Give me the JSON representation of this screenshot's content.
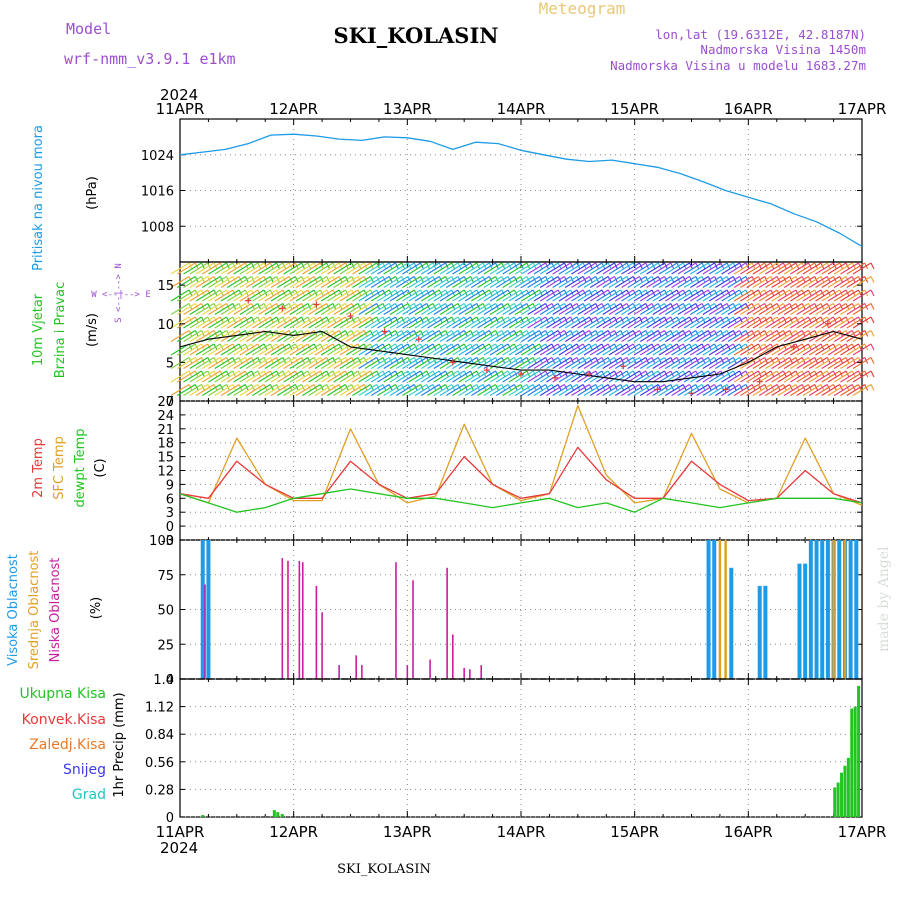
{
  "header": {
    "model_label": "Model",
    "model_name": "wrf-nmm_v3.9.1  e1km",
    "station": "SKI_KOLASIN",
    "product": "Meteogram",
    "lonlat": "lon,lat (19.6312E, 42.8187N)",
    "elevation": "Nadmorska Visina 1450m",
    "model_elevation": "Nadmorska Visina u modelu 1683.27m",
    "credit": "made by Angel",
    "footer_station": "SKI_KOLASIN"
  },
  "time_axis": {
    "year": "2024",
    "ticks": [
      "11APR",
      "12APR",
      "13APR",
      "14APR",
      "15APR",
      "16APR",
      "17APR"
    ]
  },
  "colors": {
    "pressure": "#1e9be6",
    "temp2m": "#e83a3a",
    "sfc_temp": "#e0a028",
    "dewpoint": "#22c422",
    "cloud_high": "#1e9be6",
    "cloud_mid": "#e0a028",
    "cloud_low": "#c81ea0",
    "precip": "#22c422",
    "wind_speed": "#000000",
    "gust": "#e83a3a"
  },
  "chart_data": [
    {
      "type": "line",
      "title": "",
      "panel": "pressure",
      "ylabel": "Pritisak na nivou mora",
      "unit": "(hPa)",
      "yticks": [
        "1024",
        "1016",
        "1008"
      ],
      "ylim": [
        1000,
        1032
      ],
      "x_days": [
        0,
        0.2,
        0.4,
        0.6,
        0.8,
        1.0,
        1.2,
        1.4,
        1.6,
        1.8,
        2.0,
        2.2,
        2.4,
        2.6,
        2.8,
        3.0,
        3.2,
        3.4,
        3.6,
        3.8,
        4.0,
        4.2,
        4.4,
        4.6,
        4.8,
        5.0,
        5.2,
        5.4,
        5.6,
        5.8,
        6.0
      ],
      "values": [
        1024.0,
        1024.6,
        1025.2,
        1026.5,
        1028.4,
        1028.6,
        1028.2,
        1027.5,
        1027.2,
        1028.0,
        1027.8,
        1027.0,
        1025.2,
        1026.8,
        1026.5,
        1025.0,
        1024.0,
        1023.0,
        1022.5,
        1022.8,
        1022.0,
        1021.2,
        1019.8,
        1018.0,
        1016.0,
        1014.5,
        1013.0,
        1010.8,
        1009.0,
        1006.5,
        1003.5
      ]
    },
    {
      "type": "line",
      "title": "",
      "panel": "wind",
      "ylabel": "10m Vjetar Brzina i Pravac",
      "unit": "(m/s)",
      "direction_legend": "W <--|--> E",
      "direction_legend_vertical": "S <--|--> N",
      "yticks": [
        "15",
        "10",
        "5",
        "0"
      ],
      "ylim": [
        0,
        18
      ],
      "series": [
        {
          "name": "",
          "x_days": [
            0,
            0.25,
            0.5,
            0.75,
            1.0,
            1.25,
            1.5,
            1.75,
            2.0,
            2.25,
            2.5,
            2.75,
            3.0,
            3.25,
            3.5,
            3.75,
            4.0,
            4.25,
            4.5,
            4.75,
            5.0,
            5.25,
            5.5,
            5.75,
            6.0
          ],
          "values": [
            7,
            8,
            8.5,
            9,
            8.5,
            9,
            7,
            6.5,
            6,
            5.5,
            5,
            4.5,
            4,
            4,
            3.5,
            3,
            2.5,
            2.5,
            3,
            3.5,
            5,
            7,
            8,
            9,
            8
          ]
        },
        {
          "name": "",
          "x_days": [
            0.6,
            0.9,
            1.2,
            1.5,
            1.8,
            2.1,
            2.4,
            2.7,
            3.0,
            3.3,
            3.6,
            3.9,
            4.2,
            4.5,
            4.8,
            5.1,
            5.4,
            5.7
          ],
          "values": [
            13,
            12,
            12.5,
            11,
            9,
            8,
            5,
            4,
            3.5,
            3.0,
            3.5,
            4.5,
            1.5,
            1.0,
            1.5,
            2.5,
            7,
            10
          ]
        }
      ]
    },
    {
      "type": "line",
      "title": "",
      "panel": "temperature",
      "ylabel_lines": [
        "2m Temp",
        "SFC Temp",
        "dewpt Temp"
      ],
      "unit": "(C)",
      "yticks": [
        "27",
        "24",
        "21",
        "18",
        "15",
        "12",
        "9",
        "6",
        "3",
        "0",
        "-3"
      ],
      "ylim": [
        -3,
        27
      ],
      "x_days": [
        0,
        0.25,
        0.5,
        0.75,
        1.0,
        1.25,
        1.5,
        1.75,
        2.0,
        2.25,
        2.5,
        2.75,
        3.0,
        3.25,
        3.5,
        3.75,
        4.0,
        4.25,
        4.5,
        4.75,
        5.0,
        5.25,
        5.5,
        5.75,
        6.0
      ],
      "series": [
        {
          "name": "2m Temp",
          "values": [
            7,
            6,
            14,
            9,
            6,
            6,
            14,
            9,
            6,
            7,
            15,
            9,
            6,
            7,
            17,
            10,
            6,
            6,
            14,
            9,
            5.5,
            6,
            12,
            7,
            5
          ]
        },
        {
          "name": "SFC Temp",
          "values": [
            7,
            5,
            19,
            9,
            5.5,
            5.5,
            21,
            9,
            5,
            6.5,
            22,
            9,
            5.5,
            7,
            26,
            11,
            5,
            6,
            20,
            8,
            5,
            6,
            19,
            7,
            4.5
          ]
        },
        {
          "name": "dewpt Temp",
          "values": [
            7,
            5,
            3,
            4,
            6,
            7,
            8,
            7,
            6,
            6,
            5,
            4,
            5,
            6,
            4,
            5,
            3,
            6,
            5,
            4,
            5,
            6,
            6,
            6,
            5
          ]
        }
      ]
    },
    {
      "type": "bar",
      "title": "",
      "panel": "cloud",
      "ylabel_lines": [
        "Visoka Oblacnost",
        "Srednja Oblacnost",
        "Niska Oblacnost"
      ],
      "unit": "(%)",
      "yticks": [
        "100",
        "75",
        "50",
        "25",
        "0"
      ],
      "ylim": [
        0,
        100
      ],
      "series": [
        {
          "name": "Visoka Oblacnost",
          "x_days": [
            0.2,
            0.25,
            4.65,
            4.7,
            4.85,
            5.1,
            5.15,
            5.45,
            5.5,
            5.55,
            5.6,
            5.65,
            5.7,
            5.75,
            5.8,
            5.85,
            5.9,
            5.95
          ],
          "values": [
            100,
            100,
            100,
            100,
            80,
            67,
            67,
            83,
            83,
            100,
            100,
            100,
            100,
            100,
            100,
            100,
            100,
            100
          ]
        },
        {
          "name": "Srednja Oblacnost",
          "x_days": [
            4.75,
            4.8,
            5.75,
            5.85
          ],
          "values": [
            100,
            100,
            100,
            100
          ]
        },
        {
          "name": "Niska Oblacnost",
          "x_days": [
            0.22,
            0.9,
            0.95,
            1.05,
            1.08,
            1.2,
            1.25,
            1.4,
            1.55,
            1.6,
            1.9,
            2.0,
            2.05,
            2.2,
            2.35,
            2.4,
            2.5,
            2.55,
            2.65
          ],
          "values": [
            68,
            87,
            85,
            85,
            84,
            67,
            48,
            10,
            17,
            10,
            84,
            10,
            71,
            14,
            80,
            32,
            8,
            7,
            10
          ]
        }
      ]
    },
    {
      "type": "bar",
      "title": "",
      "panel": "precip",
      "legend": [
        "Ukupna Kisa",
        "Konvek.Kisa",
        "Zaledj.Kisa",
        "Snijeg",
        "Grad"
      ],
      "legend_colors": [
        "#22c422",
        "#e83a3a",
        "#e87a28",
        "#3a3ae8",
        "#22c4c4"
      ],
      "ylabel": "1hr Precip (mm)",
      "yticks": [
        "1.4",
        "1.12",
        "0.84",
        "0.56",
        "0.28",
        "0"
      ],
      "ylim": [
        0,
        1.4
      ],
      "x_days": [
        0.2,
        0.83,
        0.86,
        0.9,
        5.76,
        5.79,
        5.82,
        5.85,
        5.88,
        5.91,
        5.94,
        5.97
      ],
      "values": [
        0.02,
        0.07,
        0.05,
        0.03,
        0.3,
        0.35,
        0.45,
        0.52,
        0.6,
        1.1,
        1.12,
        1.33
      ]
    }
  ]
}
